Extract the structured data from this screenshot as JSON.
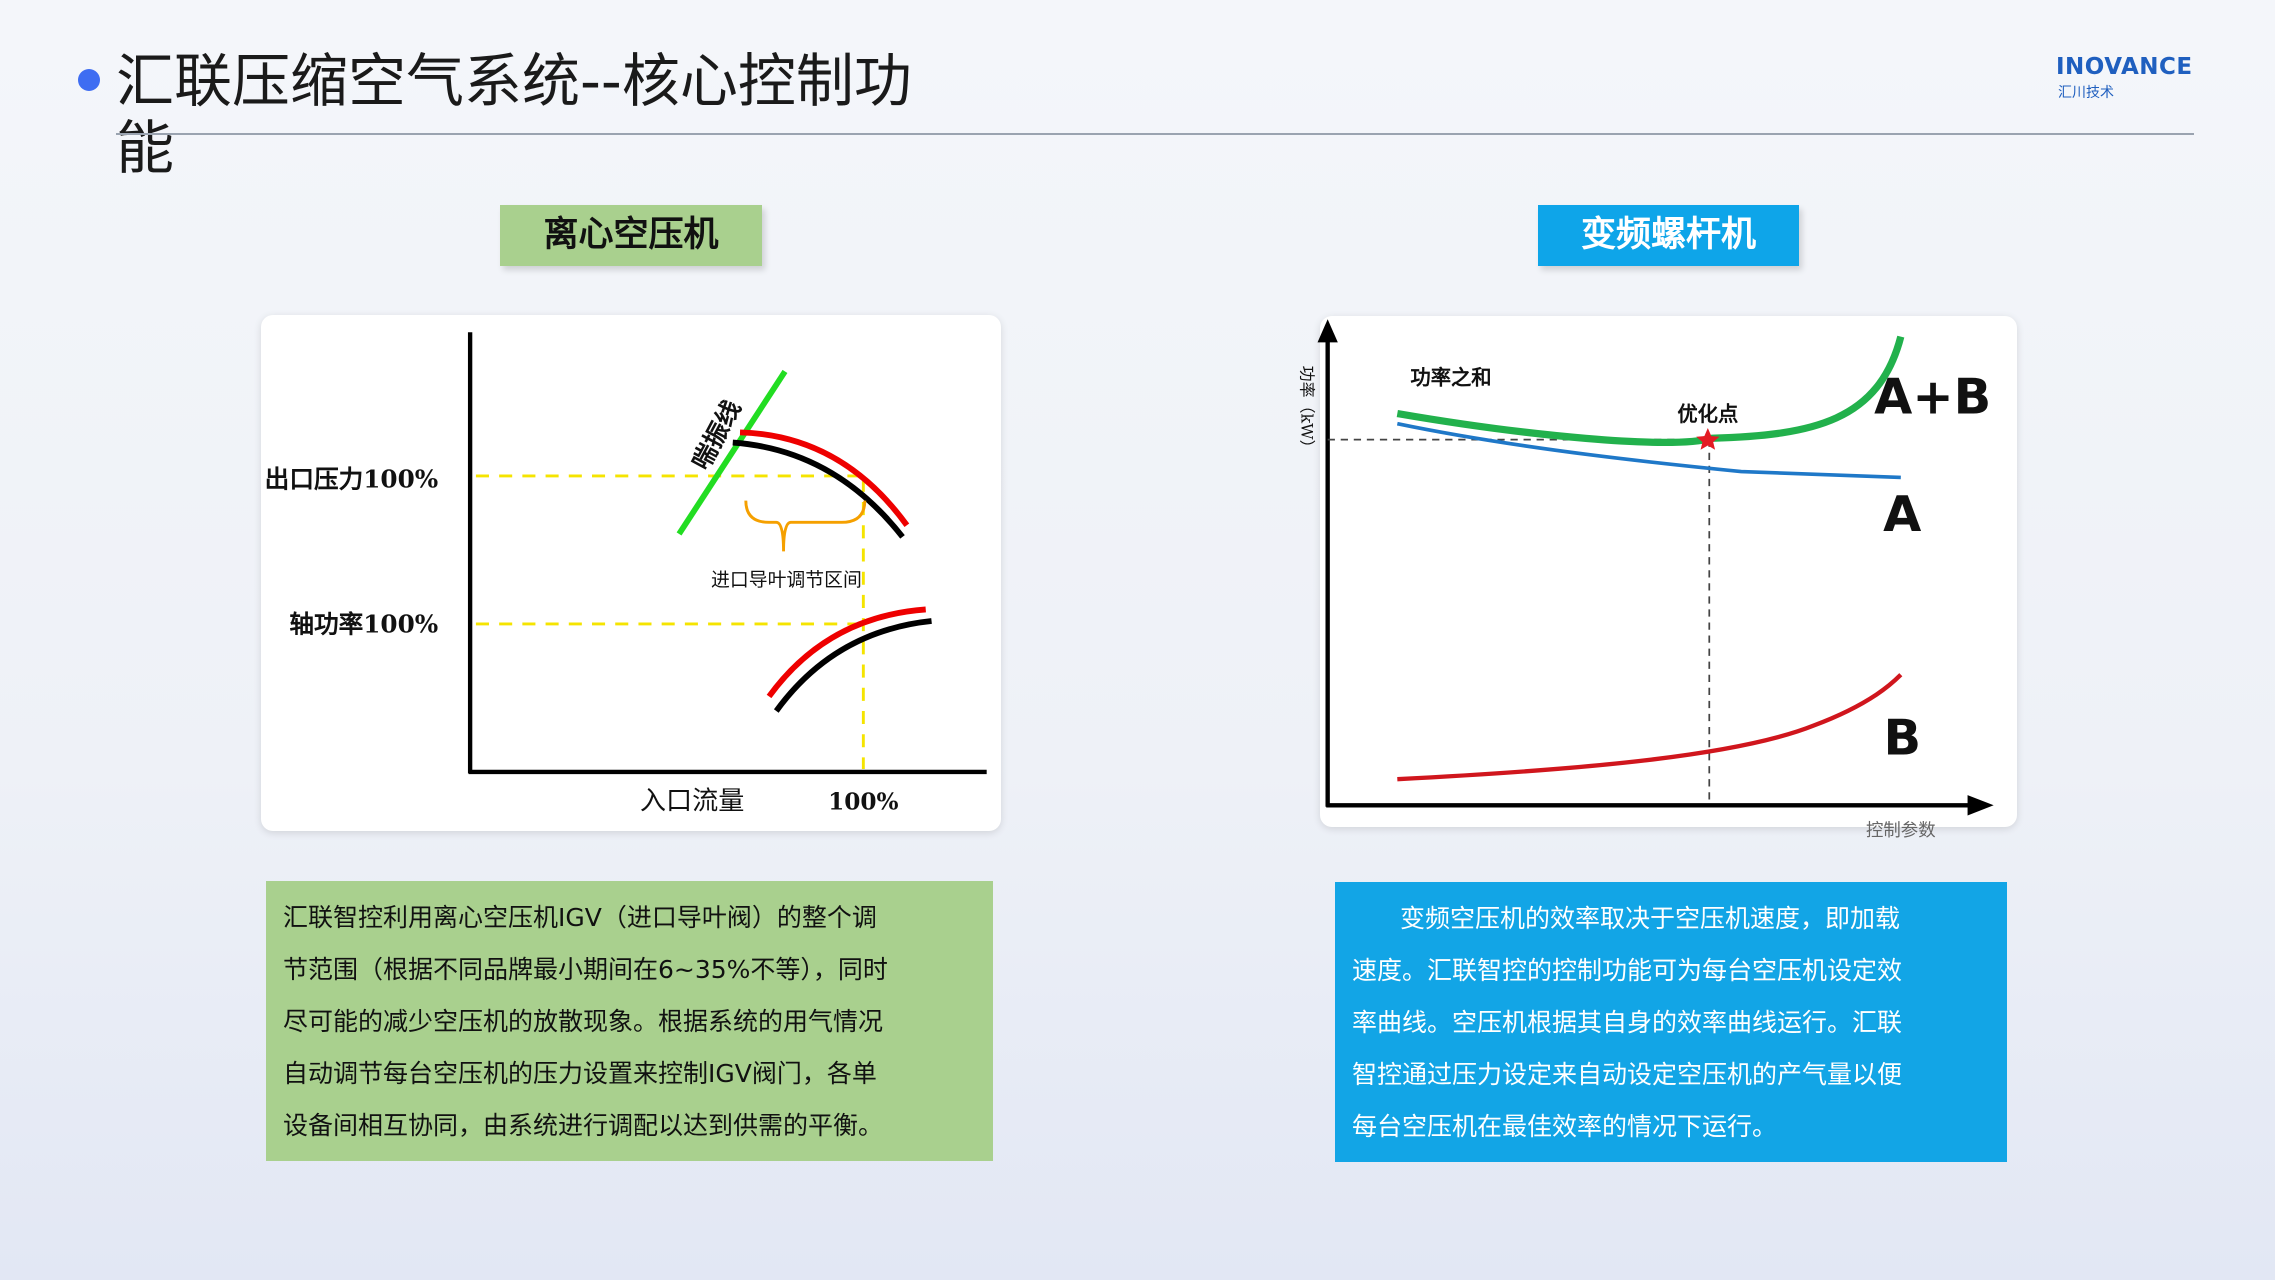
{
  "header": {
    "title": "汇联压缩空气系统--核心控制功能",
    "logo": "INOVANCE",
    "logo_sub": "汇川技术"
  },
  "left": {
    "label": "离心空压机",
    "diagram": {
      "y_label_pressure": "出口压力100%",
      "y_label_power": "轴功率100%",
      "surge_line": "喘振线",
      "igv_range": "进口导叶调节区间",
      "x_label": "入口流量",
      "x_mark": "100%"
    },
    "description": [
      "汇联智控利用离心空压机IGV（进口导叶阀）的整个调",
      "节范围（根据不同品牌最小期间在6~35%不等），同时",
      "尽可能的减少空压机的放散现象。根据系统的用气情况",
      "自动调节每台空压机的压力设置来控制IGV阀门，各单",
      "设备间相互协同，由系统进行调配以达到供需的平衡。"
    ]
  },
  "right": {
    "label": "变频螺杆机",
    "diagram": {
      "y_label": "功率（kW）",
      "x_label": "控制参数",
      "sum_label": "功率之和",
      "optimum": "优化点",
      "curve_ab": "A+B",
      "curve_a": "A",
      "curve_b": "B"
    },
    "description": [
      "变频空压机的效率取决于空压机速度，即加载",
      "速度。汇联智控的控制功能可为每台空压机设定效",
      "率曲线。空压机根据其自身的效率曲线运行。汇联",
      "智控通过压力设定来自动设定空压机的产气量以便",
      "每台空压机在最佳效率的情况下运行。"
    ]
  }
}
